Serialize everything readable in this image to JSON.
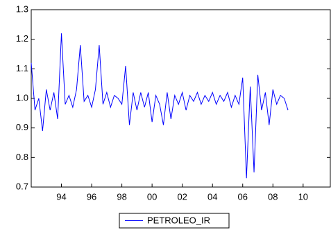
{
  "chart_data": {
    "type": "line",
    "x": [
      1992.0,
      1992.25,
      1992.5,
      1992.75,
      1993.0,
      1993.25,
      1993.5,
      1993.75,
      1994.0,
      1994.25,
      1994.5,
      1994.75,
      1995.0,
      1995.25,
      1995.5,
      1995.75,
      1996.0,
      1996.25,
      1996.5,
      1996.75,
      1997.0,
      1997.25,
      1997.5,
      1997.75,
      1998.0,
      1998.25,
      1998.5,
      1998.75,
      1999.0,
      1999.25,
      1999.5,
      1999.75,
      2000.0,
      2000.25,
      2000.5,
      2000.75,
      2001.0,
      2001.25,
      2001.5,
      2001.75,
      2002.0,
      2002.25,
      2002.5,
      2002.75,
      2003.0,
      2003.25,
      2003.5,
      2003.75,
      2004.0,
      2004.25,
      2004.5,
      2004.75,
      2005.0,
      2005.25,
      2005.5,
      2005.75,
      2006.0,
      2006.25,
      2006.5,
      2006.75,
      2007.0,
      2007.25,
      2007.5,
      2007.75,
      2008.0,
      2008.25,
      2008.5,
      2008.75,
      2009.0
    ],
    "series": [
      {
        "name": "PETROLEO_IR",
        "color": "#0000ff",
        "values": [
          1.12,
          0.96,
          1.0,
          0.89,
          1.03,
          0.96,
          1.02,
          0.93,
          1.22,
          0.98,
          1.01,
          0.97,
          1.03,
          1.18,
          0.99,
          1.01,
          0.97,
          1.03,
          1.18,
          0.98,
          1.02,
          0.97,
          1.01,
          1.0,
          0.98,
          1.11,
          0.91,
          1.02,
          0.96,
          1.02,
          0.97,
          1.02,
          0.92,
          1.01,
          0.98,
          0.91,
          1.02,
          0.93,
          1.01,
          0.98,
          1.02,
          0.96,
          1.01,
          0.99,
          1.02,
          0.98,
          1.01,
          0.99,
          1.02,
          0.98,
          1.01,
          0.99,
          1.02,
          0.97,
          1.01,
          0.98,
          1.07,
          0.73,
          1.04,
          0.75,
          1.08,
          0.96,
          1.02,
          0.91,
          1.03,
          0.98,
          1.01,
          1.0,
          0.96
        ]
      }
    ],
    "xlim": [
      1992,
      2011.8
    ],
    "xticks": [
      {
        "value": 1994,
        "label": "94"
      },
      {
        "value": 1996,
        "label": "96"
      },
      {
        "value": 1998,
        "label": "98"
      },
      {
        "value": 2000,
        "label": "00"
      },
      {
        "value": 2002,
        "label": "02"
      },
      {
        "value": 2004,
        "label": "04"
      },
      {
        "value": 2006,
        "label": "06"
      },
      {
        "value": 2008,
        "label": "08"
      },
      {
        "value": 2010,
        "label": "10"
      }
    ],
    "ylim": [
      0.7,
      1.3
    ],
    "yticks": [
      0.7,
      0.8,
      0.9,
      {
        "value": 1,
        "label": "1.0"
      },
      1.1,
      1.2,
      1.3
    ],
    "grid": false
  }
}
